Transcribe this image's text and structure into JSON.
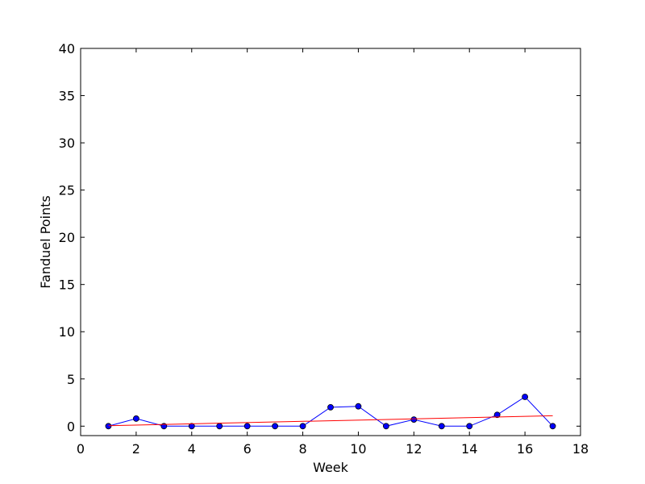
{
  "chart_data": {
    "type": "line",
    "title": "",
    "xlabel": "Week",
    "ylabel": "Fanduel Points",
    "xlim": [
      0,
      18
    ],
    "ylim": [
      -1,
      40
    ],
    "xticks": [
      0,
      2,
      4,
      6,
      8,
      10,
      12,
      14,
      16,
      18
    ],
    "yticks": [
      0,
      5,
      10,
      15,
      20,
      25,
      30,
      35,
      40
    ],
    "grid": false,
    "series": [
      {
        "kind": "line-markers",
        "color": "#0000ff",
        "x": [
          1,
          2,
          3,
          4,
          5,
          6,
          7,
          8,
          9,
          10,
          11,
          12,
          13,
          14,
          15,
          16,
          17
        ],
        "y": [
          0,
          0.8,
          0,
          0,
          0,
          0,
          0,
          0,
          2.0,
          2.1,
          0,
          0.7,
          0,
          0,
          1.2,
          3.1,
          0
        ]
      },
      {
        "kind": "trend-line",
        "color": "#ff0000",
        "x": [
          1,
          17
        ],
        "y": [
          0.05,
          1.1
        ]
      }
    ]
  }
}
